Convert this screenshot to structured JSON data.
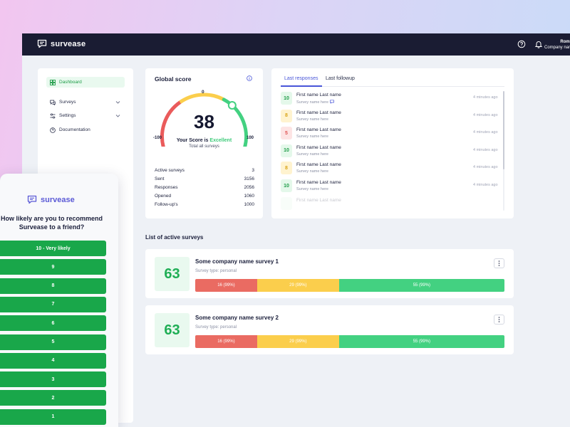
{
  "app": {
    "name": "survease"
  },
  "user": {
    "name": "Roma",
    "company": "Company nam"
  },
  "sidebar": {
    "items": [
      {
        "label": "Dashboard",
        "icon": "grid-icon"
      },
      {
        "label": "Surveys",
        "icon": "chat-icon"
      },
      {
        "label": "Settings",
        "icon": "sliders-icon"
      },
      {
        "label": "Documentation",
        "icon": "help-circle-icon"
      }
    ]
  },
  "global_score": {
    "title": "Global score",
    "score": 38,
    "gauge_value": 38,
    "min_label": "-100",
    "mid_label": "0",
    "max_label": "100",
    "score_prefix": "Your Score is",
    "score_word": "Excellent",
    "subtitle": "Total all surveys",
    "stats": [
      {
        "label": "Active surveys",
        "value": "3"
      },
      {
        "label": "Sent",
        "value": "3156"
      },
      {
        "label": "Responses",
        "value": "2056"
      },
      {
        "label": "Opened",
        "value": "1060"
      },
      {
        "label": "Follow-up's",
        "value": "1000"
      }
    ]
  },
  "responses": {
    "tabs": [
      "Last responses",
      "Last followup"
    ],
    "items": [
      {
        "score": "10",
        "color": "green",
        "name": "First name Last name",
        "survey": "Survey name here",
        "time": "4 minutes ago",
        "chat": true
      },
      {
        "score": "8",
        "color": "yellow",
        "name": "First name Last name",
        "survey": "Survey name here",
        "time": "4 minutes ago",
        "chat": false
      },
      {
        "score": "5",
        "color": "red",
        "name": "First name Last name",
        "survey": "Survey name here",
        "time": "4 minutes ago",
        "chat": false
      },
      {
        "score": "10",
        "color": "green",
        "name": "First name Last name",
        "survey": "Survey name here",
        "time": "4 minutes ago",
        "chat": false
      },
      {
        "score": "8",
        "color": "yellow",
        "name": "First name Last name",
        "survey": "Survey name here",
        "time": "4 minutes ago",
        "chat": false
      },
      {
        "score": "10",
        "color": "green",
        "name": "First name Last name",
        "survey": "Survey name here",
        "time": "4 minutes ago",
        "chat": false
      },
      {
        "score": "",
        "color": "green",
        "name": "First name Last name",
        "survey": "",
        "time": "",
        "chat": false
      }
    ]
  },
  "active_surveys": {
    "title": "List of active surveys",
    "items": [
      {
        "score": "63",
        "name": "Some company name survey 1",
        "type": "Survey type: personal",
        "segments": [
          {
            "label": "16 (99%)",
            "share": 0.2
          },
          {
            "label": "29 (99%)",
            "share": 0.265
          },
          {
            "label": "55 (99%)",
            "share": 0.535
          }
        ]
      },
      {
        "score": "63",
        "name": "Some company name survey 2",
        "type": "Survey type: personal",
        "segments": [
          {
            "label": "16 (99%)",
            "share": 0.2
          },
          {
            "label": "29 (99%)",
            "share": 0.265
          },
          {
            "label": "55 (99%)",
            "share": 0.535
          }
        ]
      }
    ]
  },
  "widget": {
    "brand": "survease",
    "question_line1": "How likely are you to recommend",
    "question_line2": "Survease to a friend?",
    "options": [
      "10 - Very likely",
      "9",
      "8",
      "7",
      "6",
      "5",
      "4",
      "3",
      "2",
      "1"
    ]
  },
  "colors": {
    "accent": "#4855d8",
    "green": "#43d181",
    "yellow": "#fbce4c",
    "red": "#ea6b62",
    "topbar": "#1a1c33"
  }
}
